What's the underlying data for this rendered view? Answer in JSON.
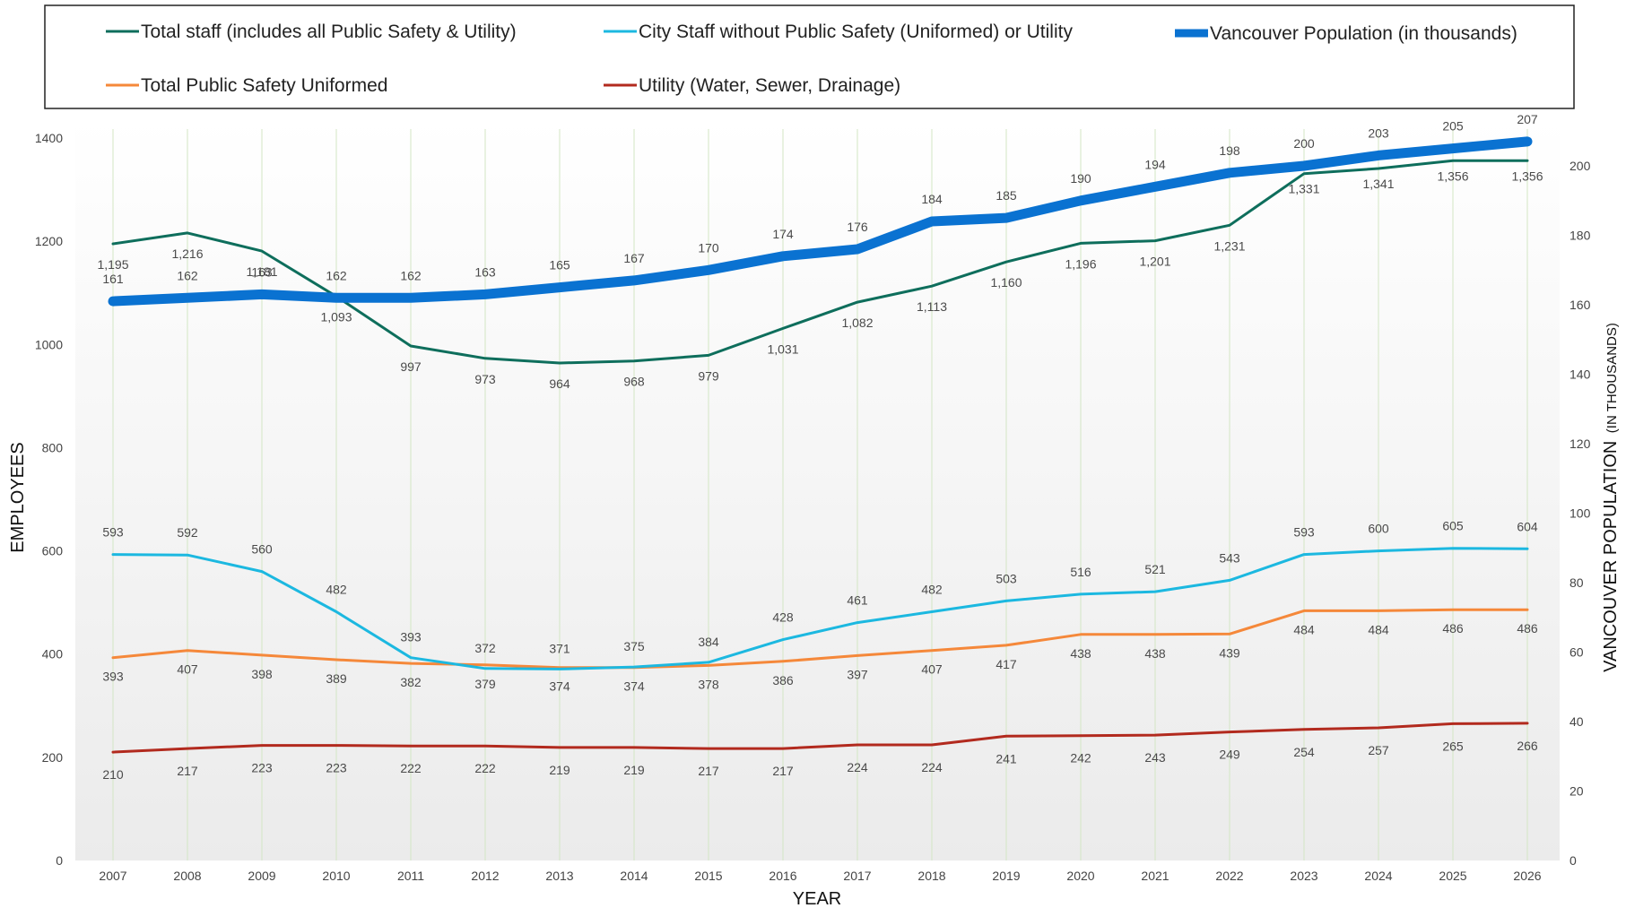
{
  "chart_data": {
    "type": "line",
    "xlabel": "YEAR",
    "ylabel": "EMPLOYEES",
    "y2label_main": "VANCOUVER POPULATION",
    "y2label_suffix": "(IN THOUSANDS)",
    "ylim": [
      0,
      1400
    ],
    "y2lim": [
      0,
      210
    ],
    "yticks": [
      0,
      200,
      400,
      600,
      800,
      1000,
      1200,
      1400
    ],
    "y2ticks": [
      0,
      20,
      40,
      60,
      80,
      100,
      120,
      140,
      160,
      180,
      200
    ],
    "grid": "vertical",
    "legend_position": "top",
    "categories": [
      "2007",
      "2008",
      "2009",
      "2010",
      "2011",
      "2012",
      "2013",
      "2014",
      "2015",
      "2016",
      "2017",
      "2018",
      "2019",
      "2020",
      "2021",
      "2022",
      "2023",
      "2024",
      "2025",
      "2026"
    ],
    "series": [
      {
        "name": "Total staff (includes all Public Safety & Utility)",
        "axis": "left",
        "color": "#0e6e5c",
        "values": [
          1195,
          1216,
          1181,
          1093,
          997,
          973,
          964,
          968,
          979,
          1031,
          1082,
          1113,
          1160,
          1196,
          1201,
          1231,
          1331,
          1341,
          1356,
          1356
        ],
        "labels": [
          "1,195",
          "1,216",
          "1,181",
          "1,093",
          "997",
          "973",
          "964",
          "968",
          "979",
          "1,031",
          "1,082",
          "1,113",
          "1,160",
          "1,196",
          "1,201",
          "1,231",
          "1,331",
          "1,341",
          "1,356",
          "1,356"
        ]
      },
      {
        "name": "City Staff without Public Safety (Uniformed) or Utility",
        "axis": "left",
        "color": "#1cb8e0",
        "values": [
          593,
          592,
          560,
          482,
          393,
          372,
          371,
          375,
          384,
          428,
          461,
          482,
          503,
          516,
          521,
          543,
          593,
          600,
          605,
          604
        ],
        "labels": [
          "593",
          "592",
          "560",
          "482",
          "393",
          "372",
          "371",
          "375",
          "384",
          "428",
          "461",
          "482",
          "503",
          "516",
          "521",
          "543",
          "593",
          "600",
          "605",
          "604"
        ]
      },
      {
        "name": "Vancouver Population (in thousands)",
        "axis": "right",
        "color": "#0a72d1",
        "values": [
          161,
          162,
          163,
          162,
          162,
          163,
          165,
          167,
          170,
          174,
          176,
          184,
          185,
          190,
          194,
          198,
          200,
          203,
          205,
          207
        ],
        "labels": [
          "161",
          "162",
          "163",
          "162",
          "162",
          "163",
          "165",
          "167",
          "170",
          "174",
          "176",
          "184",
          "185",
          "190",
          "194",
          "198",
          "200",
          "203",
          "205",
          "207"
        ]
      },
      {
        "name": "Total Public Safety Uniformed",
        "axis": "left",
        "color": "#f5883a",
        "values": [
          393,
          407,
          398,
          389,
          382,
          379,
          374,
          374,
          378,
          386,
          397,
          407,
          417,
          438,
          438,
          439,
          484,
          484,
          486,
          486
        ],
        "labels": [
          "393",
          "407",
          "398",
          "389",
          "382",
          "379",
          "374",
          "374",
          "378",
          "386",
          "397",
          "407",
          "417",
          "438",
          "438",
          "439",
          "484",
          "484",
          "486",
          "486"
        ]
      },
      {
        "name": "Utility (Water, Sewer, Drainage)",
        "axis": "left",
        "color": "#b22a1e",
        "values": [
          210,
          217,
          223,
          223,
          222,
          222,
          219,
          219,
          217,
          217,
          224,
          224,
          241,
          242,
          243,
          249,
          254,
          257,
          265,
          266
        ],
        "labels": [
          "210",
          "217",
          "223",
          "223",
          "222",
          "222",
          "219",
          "219",
          "217",
          "217",
          "224",
          "224",
          "241",
          "242",
          "243",
          "249",
          "254",
          "257",
          "265",
          "266"
        ]
      }
    ]
  }
}
